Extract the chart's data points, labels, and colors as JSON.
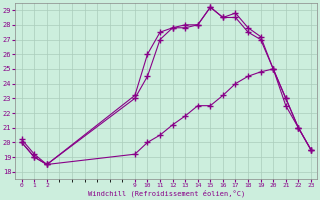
{
  "xlabel": "Windchill (Refroidissement éolien,°C)",
  "bg_color": "#cceedd",
  "grid_color": "#aaccbb",
  "line_color": "#880088",
  "ylim": [
    17.5,
    29.5
  ],
  "yticks": [
    18,
    19,
    20,
    21,
    22,
    23,
    24,
    25,
    26,
    27,
    28,
    29
  ],
  "xlim": [
    -0.5,
    23.5
  ],
  "xticks": [
    0,
    1,
    2,
    9,
    10,
    11,
    12,
    13,
    14,
    15,
    16,
    17,
    18,
    19,
    20,
    21,
    22,
    23
  ],
  "xtick_labels": [
    "0",
    "1",
    "2",
    "9",
    "10",
    "11",
    "12",
    "13",
    "14",
    "15",
    "16",
    "17",
    "18",
    "19",
    "20",
    "21",
    "22",
    "23"
  ],
  "line1_x": [
    0,
    1,
    2,
    9,
    10,
    11,
    12,
    13,
    14,
    15,
    16,
    17,
    18,
    19,
    20,
    21,
    22,
    23
  ],
  "line1_y": [
    20.0,
    19.0,
    18.5,
    23.0,
    24.5,
    27.0,
    27.8,
    27.8,
    28.0,
    29.2,
    28.5,
    28.5,
    27.5,
    27.0,
    25.0,
    23.0,
    21.0,
    19.5
  ],
  "line2_x": [
    0,
    1,
    2,
    9,
    10,
    11,
    12,
    13,
    14,
    15,
    16,
    17,
    18,
    19,
    20,
    21,
    22,
    23
  ],
  "line2_y": [
    20.0,
    19.0,
    18.5,
    23.2,
    26.0,
    27.5,
    27.8,
    28.0,
    28.0,
    29.2,
    28.5,
    28.8,
    27.8,
    27.2,
    25.0,
    23.0,
    21.0,
    19.5
  ],
  "line3_x": [
    0,
    1,
    2,
    9,
    10,
    11,
    12,
    13,
    14,
    15,
    16,
    17,
    18,
    19,
    20,
    21,
    22,
    23
  ],
  "line3_y": [
    20.2,
    19.2,
    18.5,
    19.2,
    20.0,
    20.5,
    21.2,
    21.8,
    22.5,
    22.5,
    23.2,
    24.0,
    24.5,
    24.8,
    25.0,
    22.5,
    21.0,
    19.5
  ]
}
